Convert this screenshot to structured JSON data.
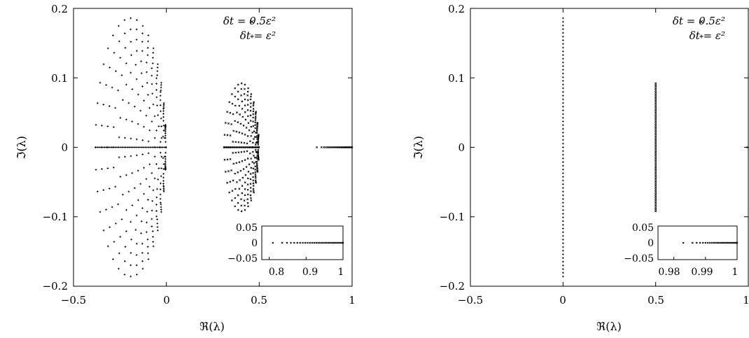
{
  "chart_data": [
    {
      "type": "scatter",
      "xlabel": "ℜ(λ)",
      "ylabel": "ℑ(λ)",
      "xlim": [
        -0.5,
        1
      ],
      "ylim": [
        -0.2,
        0.2
      ],
      "x_ticks": [
        "−0.5",
        "0",
        "0.5",
        "1"
      ],
      "y_ticks": [
        "−0.2",
        "−0.1",
        "0",
        "0.1",
        "0.2"
      ],
      "legend_position": "top-right",
      "series": [
        {
          "name": "δt = 0.5ε²",
          "marker": "x",
          "description": "ellipse rings centered near 0.4, Re in [0.31, 0.5], |Im| ≤ 0.092; real points 0.81–1"
        },
        {
          "name": "δt = ε²",
          "marker": "+",
          "description": "ellipse rings centered near −0.18, Re in [−0.38, 0], |Im| ≤ 0.186; real points −0.38–0"
        }
      ],
      "inset": {
        "xlim": [
          0.78,
          1
        ],
        "ylim": [
          -0.05,
          0.05
        ],
        "x_ticks": [
          "0.8",
          "0.9",
          "1"
        ],
        "y_ticks": [
          "0.05",
          "0",
          "−0.05"
        ]
      }
    },
    {
      "type": "scatter",
      "xlabel": "ℜ(λ)",
      "ylabel": "ℑ(λ)",
      "xlim": [
        -0.5,
        1
      ],
      "ylim": [
        -0.2,
        0.2
      ],
      "x_ticks": [
        "−0.5",
        "0",
        "0.5",
        "1"
      ],
      "y_ticks": [
        "−0.2",
        "−0.1",
        "0",
        "0.1",
        "0.2"
      ],
      "legend_position": "top-right",
      "series": [
        {
          "name": "δt = 0.5ε²",
          "marker": "x",
          "description": "vertical line at Re = 0.5, |Im| ≤ 0.092"
        },
        {
          "name": "δt = ε²",
          "marker": "+",
          "description": "vertical line at Re = 0, |Im| ≤ 0.186"
        }
      ],
      "inset": {
        "xlim": [
          0.975,
          1
        ],
        "ylim": [
          -0.05,
          0.05
        ],
        "x_ticks": [
          "0.98",
          "0.99",
          "1"
        ],
        "y_ticks": [
          "0.05",
          "0",
          "−0.05"
        ]
      }
    }
  ]
}
